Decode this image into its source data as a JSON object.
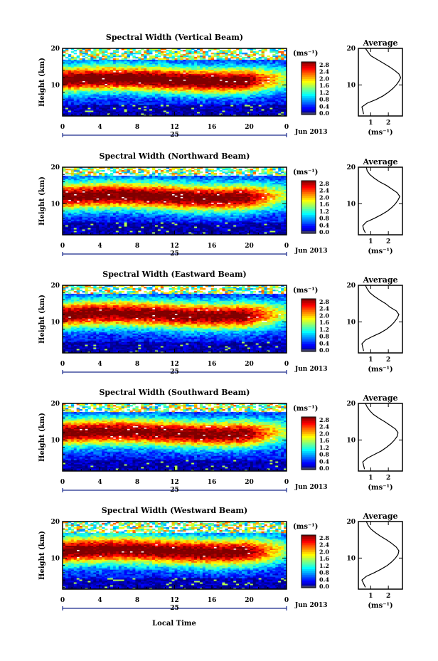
{
  "page": {
    "bottom_label": "Local Time"
  },
  "chart_data": [
    {
      "type": "heatmap",
      "title": "Spectral Width (Vertical Beam)",
      "ylabel": "Height (km)",
      "xlabel": "Local Time",
      "x_ticks": [
        "0",
        "4",
        "8",
        "12",
        "16",
        "20",
        "0"
      ],
      "date_day": "25",
      "date_month": "Jun 2013",
      "xlim": [
        0,
        24
      ],
      "ylim": [
        1.5,
        20
      ],
      "y_ticks": [
        10,
        20
      ],
      "colorbar": {
        "unit": "(ms⁻¹)",
        "ticks": [
          "2.8",
          "2.4",
          "2.0",
          "1.6",
          "1.2",
          "0.8",
          "0.4",
          "0.0"
        ],
        "range": [
          0,
          2.8
        ]
      },
      "features": {
        "peak_height_km": 11.5,
        "peak_width": 2.8,
        "band_half_width_km": 2.5,
        "upper_gap_km": 17,
        "low_band_km": 4.5
      },
      "profile": {
        "title": "Average",
        "xlabel": "(ms⁻¹)",
        "x_ticks": [
          1,
          2
        ],
        "xlim": [
          0.3,
          2.8
        ],
        "y_ticks": [
          10,
          20
        ],
        "ylim": [
          1.5,
          20
        ],
        "height_km": [
          2,
          3,
          4,
          5,
          6,
          7,
          8,
          9,
          10,
          11,
          12,
          13,
          14,
          15,
          16,
          17,
          18,
          19,
          20
        ],
        "width_ms": [
          0.6,
          0.55,
          0.5,
          0.8,
          1.3,
          1.7,
          2.0,
          2.25,
          2.45,
          2.6,
          2.7,
          2.6,
          2.35,
          2.05,
          1.7,
          1.35,
          1.0,
          0.85,
          0.7
        ]
      }
    },
    {
      "type": "heatmap",
      "title": "Spectral Width (Northward Beam)",
      "ylabel": "Height (km)",
      "xlabel": "Local Time",
      "x_ticks": [
        "0",
        "4",
        "8",
        "12",
        "16",
        "20",
        "0"
      ],
      "date_day": "25",
      "date_month": "Jun 2013",
      "xlim": [
        0,
        24
      ],
      "ylim": [
        1.5,
        20
      ],
      "y_ticks": [
        10,
        20
      ],
      "colorbar": {
        "unit": "(ms⁻¹)",
        "ticks": [
          "2.8",
          "2.4",
          "2.0",
          "1.6",
          "1.2",
          "0.8",
          "0.4",
          "0.0"
        ],
        "range": [
          0,
          2.8
        ]
      },
      "features": {
        "peak_height_km": 12,
        "peak_width": 2.75,
        "band_half_width_km": 2.6,
        "upper_gap_km": 17.5,
        "low_band_km": 4.8
      },
      "profile": {
        "title": "Average",
        "xlabel": "(ms⁻¹)",
        "x_ticks": [
          1,
          2
        ],
        "xlim": [
          0.3,
          2.8
        ],
        "y_ticks": [
          10,
          20
        ],
        "ylim": [
          1.5,
          20
        ],
        "height_km": [
          2,
          3,
          4,
          5,
          6,
          7,
          8,
          9,
          10,
          11,
          12,
          13,
          14,
          15,
          16,
          17,
          18,
          19,
          20
        ],
        "width_ms": [
          0.7,
          0.6,
          0.55,
          0.75,
          1.2,
          1.6,
          1.95,
          2.2,
          2.4,
          2.55,
          2.65,
          2.5,
          2.2,
          1.9,
          1.5,
          1.2,
          0.95,
          0.8,
          0.75
        ]
      }
    },
    {
      "type": "heatmap",
      "title": "Spectral Width (Eastward Beam)",
      "ylabel": "Height (km)",
      "xlabel": "Local Time",
      "x_ticks": [
        "0",
        "4",
        "8",
        "12",
        "16",
        "20",
        "0"
      ],
      "date_day": "25",
      "date_month": "Jun 2013",
      "xlim": [
        0,
        24
      ],
      "ylim": [
        1.5,
        20
      ],
      "y_ticks": [
        10,
        20
      ],
      "colorbar": {
        "unit": "(ms⁻¹)",
        "ticks": [
          "2.8",
          "2.4",
          "2.0",
          "1.6",
          "1.2",
          "0.8",
          "0.4",
          "0.0"
        ],
        "range": [
          0,
          2.8
        ]
      },
      "features": {
        "peak_height_km": 12,
        "peak_width": 2.7,
        "band_half_width_km": 2.6,
        "upper_gap_km": 17.5,
        "low_band_km": 4.5
      },
      "profile": {
        "title": "Average",
        "xlabel": "(ms⁻¹)",
        "x_ticks": [
          1,
          2
        ],
        "xlim": [
          0.3,
          2.8
        ],
        "y_ticks": [
          10,
          20
        ],
        "ylim": [
          1.5,
          20
        ],
        "height_km": [
          2,
          3,
          4,
          5,
          6,
          7,
          8,
          9,
          10,
          11,
          12,
          13,
          14,
          15,
          16,
          17,
          18,
          19,
          20
        ],
        "width_ms": [
          0.6,
          0.55,
          0.5,
          0.7,
          1.1,
          1.55,
          1.9,
          2.15,
          2.35,
          2.5,
          2.6,
          2.45,
          2.1,
          1.85,
          1.5,
          1.2,
          0.95,
          0.8,
          0.7
        ]
      }
    },
    {
      "type": "heatmap",
      "title": "Spectral Width (Southward Beam)",
      "ylabel": "Height (km)",
      "xlabel": "Local Time",
      "x_ticks": [
        "0",
        "4",
        "8",
        "12",
        "16",
        "20",
        "0"
      ],
      "date_day": "25",
      "date_month": "Jun 2013",
      "xlim": [
        0,
        24
      ],
      "ylim": [
        1.5,
        20
      ],
      "y_ticks": [
        10,
        20
      ],
      "colorbar": {
        "unit": "(ms⁻¹)",
        "ticks": [
          "2.8",
          "2.4",
          "2.0",
          "1.6",
          "1.2",
          "0.8",
          "0.4",
          "0.0"
        ],
        "range": [
          0,
          2.8
        ]
      },
      "features": {
        "peak_height_km": 12,
        "peak_width": 2.7,
        "band_half_width_km": 2.6,
        "upper_gap_km": 17.5,
        "low_band_km": 4.6
      },
      "profile": {
        "title": "Average",
        "xlabel": "(ms⁻¹)",
        "x_ticks": [
          1,
          2
        ],
        "xlim": [
          0.3,
          2.8
        ],
        "y_ticks": [
          10,
          20
        ],
        "ylim": [
          1.5,
          20
        ],
        "height_km": [
          2,
          3,
          4,
          5,
          6,
          7,
          8,
          9,
          10,
          11,
          12,
          13,
          14,
          15,
          16,
          17,
          18,
          19,
          20
        ],
        "width_ms": [
          0.65,
          0.6,
          0.55,
          0.8,
          1.2,
          1.6,
          1.9,
          2.15,
          2.35,
          2.5,
          2.55,
          2.4,
          2.1,
          1.8,
          1.45,
          1.15,
          0.95,
          0.8,
          0.7
        ]
      }
    },
    {
      "type": "heatmap",
      "title": "Spectral Width (Westward Beam)",
      "ylabel": "Height (km)",
      "xlabel": "Local Time",
      "x_ticks": [
        "0",
        "4",
        "8",
        "12",
        "16",
        "20",
        "0"
      ],
      "date_day": "25",
      "date_month": "Jun 2013",
      "xlim": [
        0,
        24
      ],
      "ylim": [
        1.5,
        20
      ],
      "y_ticks": [
        10,
        20
      ],
      "colorbar": {
        "unit": "(ms⁻¹)",
        "ticks": [
          "2.8",
          "2.4",
          "2.0",
          "1.6",
          "1.2",
          "0.8",
          "0.4",
          "0.0"
        ],
        "range": [
          0,
          2.8
        ]
      },
      "features": {
        "peak_height_km": 12,
        "peak_width": 2.75,
        "band_half_width_km": 2.7,
        "upper_gap_km": 17,
        "low_band_km": 4.7
      },
      "profile": {
        "title": "Average",
        "xlabel": "(ms⁻¹)",
        "x_ticks": [
          1,
          2
        ],
        "xlim": [
          0.3,
          2.8
        ],
        "y_ticks": [
          10,
          20
        ],
        "ylim": [
          1.5,
          20
        ],
        "height_km": [
          2,
          3,
          4,
          5,
          6,
          7,
          8,
          9,
          10,
          11,
          12,
          13,
          14,
          15,
          16,
          17,
          18,
          19,
          20
        ],
        "width_ms": [
          0.7,
          0.6,
          0.5,
          0.75,
          1.2,
          1.6,
          1.95,
          2.2,
          2.4,
          2.55,
          2.6,
          2.45,
          2.2,
          1.9,
          1.55,
          1.25,
          1.0,
          0.85,
          0.75
        ]
      }
    }
  ]
}
